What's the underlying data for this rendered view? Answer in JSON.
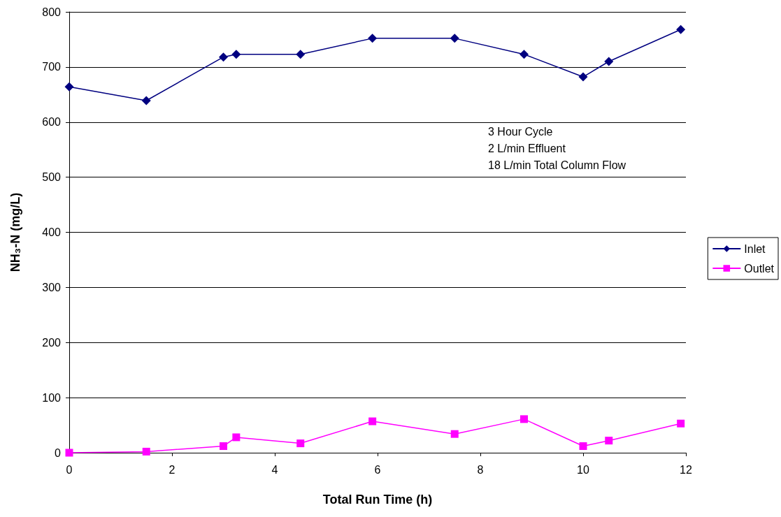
{
  "chart_data": {
    "type": "line",
    "xlabel": "Total Run Time (h)",
    "ylabel": "NH₃-N (mg/L)",
    "xlim": [
      0,
      12
    ],
    "xticks": [
      0,
      2,
      4,
      6,
      8,
      10,
      12
    ],
    "ylim": [
      0,
      800
    ],
    "yticks": [
      0,
      100,
      200,
      300,
      400,
      500,
      600,
      700,
      800
    ],
    "grid": "y",
    "legend": "right",
    "line_style": "solid",
    "annotations": [
      "3 Hour Cycle",
      "2 L/min Effluent",
      "18 L/min Total Column Flow"
    ],
    "series": [
      {
        "name": "Inlet",
        "color": "#000080",
        "marker": "diamond",
        "x": [
          0,
          1.5,
          3,
          3.25,
          4.5,
          5.9,
          7.5,
          8.85,
          10,
          10.5,
          11.9
        ],
        "values": [
          664,
          639,
          718,
          723,
          723,
          752,
          752,
          723,
          682,
          710,
          768
        ]
      },
      {
        "name": "Outlet",
        "color": "#ff00ff",
        "marker": "square",
        "x": [
          0,
          1.5,
          3,
          3.25,
          4.5,
          5.9,
          7.5,
          8.85,
          10,
          10.5,
          11.9
        ],
        "values": [
          0,
          2,
          12,
          28,
          17,
          57,
          34,
          61,
          12,
          22,
          53
        ]
      }
    ]
  }
}
